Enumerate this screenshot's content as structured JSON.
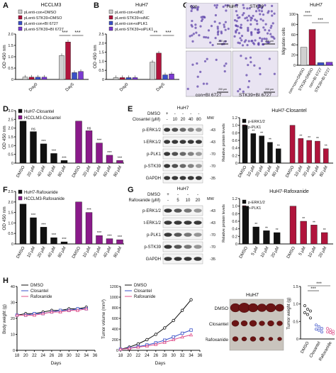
{
  "panels": {
    "A": {
      "letter": "A",
      "title": "HCCLM3",
      "ylabel": "OD 450 nm",
      "legend": [
        "pLenti-con+DMSO",
        "pLenti-STK39+DMSO",
        "pLenti-con+BI 6727",
        "pLenti-STK39+BI 6727"
      ],
      "x": [
        "Day0",
        "Day5"
      ],
      "sig": [
        "***",
        "***"
      ],
      "yticks": [
        "0",
        "0.5",
        "1.0",
        "1.5",
        "2.0"
      ]
    },
    "B": {
      "letter": "B",
      "title": "HuH7",
      "ylabel": "OD 450 nm",
      "legend": [
        "pLenti-con+siNC",
        "pLenti-STK39+siNC",
        "pLenti-con+siPLK1",
        "pLenti-STK39+siPLK1"
      ],
      "x": [
        "Day0",
        "Day5"
      ],
      "sig": [
        "**",
        "***"
      ],
      "yticks": [
        "0",
        "0.5",
        "1.0",
        "1.5",
        "2.0",
        "2.5"
      ]
    },
    "C": {
      "letter": "C",
      "img_labels": [
        "con",
        "HuH7",
        "STK39",
        "con+BI 6727",
        "STK39+BI 6727"
      ],
      "scale": "200 μm",
      "bar_title": "HuH7",
      "ylabel": "Migration cells",
      "x": [
        "con+con+DMSO",
        "STK39+DMSO",
        "con+BI 6727",
        "STK39+BI 6727"
      ],
      "sig": [
        "***",
        "***"
      ],
      "yticks": [
        "0",
        "20",
        "40",
        "60",
        "80",
        "100"
      ]
    },
    "D": {
      "letter": "D",
      "ylabel": "OD 450 nm",
      "legend": [
        "HuH7-Closantel",
        "HCCLM3-Closantel"
      ],
      "x": [
        "DMSO",
        "20 μM",
        "40 μM",
        "60 μM",
        "80 μM",
        "DMSO",
        "20 μM",
        "40 μM",
        "60 μM",
        "80 μM"
      ],
      "ns": "ns",
      "yticks": [
        "0",
        "0.5",
        "1.0",
        "1.5",
        "2.0",
        "2.5",
        "3.0"
      ]
    },
    "E": {
      "letter": "E",
      "cell": "HuH7",
      "dmso": "DMSO",
      "closantel": "Closantel (μM)",
      "plus": "+",
      "minus": "-",
      "doses": [
        "-",
        "10",
        "20",
        "40",
        "80"
      ],
      "mw": "MW",
      "rows": [
        "p-ERK1/2",
        "t-ERK1/2",
        "p-PLK1",
        "p-STK39",
        "GAPDH"
      ],
      "mws": [
        "43",
        "43",
        "70",
        "70",
        "35"
      ],
      "bar_title": "HuH7-Closantel",
      "ylabel": "Relative protein levels",
      "legend": [
        "p-ERK1/2",
        "p-PLK1"
      ],
      "x": [
        "DMSO",
        "10 μM",
        "20 μM",
        "40 μM",
        "80 μM",
        "DMSO",
        "10 μM",
        "20 μM",
        "40 μM",
        "80 μM"
      ],
      "yticks": [
        "0",
        "0.2",
        "0.4",
        "0.6",
        "0.8",
        "1.0",
        "1.2"
      ]
    },
    "F": {
      "letter": "F",
      "ylabel": "OD 450 nm",
      "legend": [
        "HuH7-Rafoxanide",
        "HCCLM3-Rafoxanide"
      ],
      "x": [
        "DMSO",
        "10 μM",
        "20 μM",
        "40 μM",
        "80 μM",
        "DMSO",
        "10 μM",
        "20 μM",
        "40 μM",
        "80 μM"
      ],
      "yticks": [
        "0",
        "0.5",
        "1.0",
        "1.5",
        "2.0",
        "2.5"
      ]
    },
    "G": {
      "letter": "G",
      "cell": "HuH7",
      "dmso": "DMSO",
      "rafoxanide": "Rafoxanide (μM)",
      "plus": "+",
      "minus": "-",
      "doses": [
        "-",
        "5",
        "10",
        "20"
      ],
      "mw": "MW",
      "rows": [
        "p-ERK1/2",
        "t-ERK1/2",
        "p-PLK1",
        "p-STK39",
        "GAPDH"
      ],
      "mws": [
        "43",
        "43",
        "70",
        "70",
        "35"
      ],
      "bar_title": "HuH7-Rafoxanide",
      "ylabel": "Relative protein levels",
      "legend": [
        "p-ERK1/2",
        "p-PLK1"
      ],
      "x": [
        "DMSO",
        "5 μM",
        "10 μM",
        "20 μM",
        "DMSO",
        "5 μM",
        "10 μM",
        "20 μM"
      ],
      "yticks": [
        "0",
        "0.2",
        "0.4",
        "0.6",
        "0.8",
        "1.0",
        "1.2"
      ]
    },
    "H": {
      "letter": "H",
      "bw_ylabel": "Body weight (g)",
      "tv_ylabel": "Tumor volume (mm³)",
      "xlabel": "Days",
      "legend": [
        "DMSO",
        "Closantel",
        "Rafoxanide"
      ],
      "days": [
        "18",
        "20",
        "22",
        "24",
        "26",
        "28",
        "30",
        "32",
        "34",
        "36"
      ],
      "bw_yticks": [
        "0",
        "10",
        "20",
        "30",
        "40"
      ],
      "tv_yticks": [
        "0",
        "200",
        "400",
        "600",
        "800",
        "1000",
        "1200"
      ],
      "photo_title": "HuH7",
      "photo_rows": [
        "DMSO",
        "Closantel",
        "Rafoxanide"
      ],
      "tw_ylabel": "Tumor weight (g)",
      "tw_x": [
        "DMSO",
        "Closantel",
        "Rafoxanide"
      ],
      "tw_yticks": [
        "0",
        "0.5",
        "1.0",
        "1.5"
      ],
      "sig": [
        "***",
        "***"
      ]
    }
  },
  "colors": {
    "grey": "#d0d0d0",
    "purple": "#8a1a8a",
    "crimson": "#b0143c",
    "blue": "#3a50c8",
    "violet": "#7a3ad0",
    "black": "#111111",
    "pink": "#e0508a"
  },
  "chart_data": [
    {
      "type": "bar",
      "panel": "A",
      "categories": [
        "Day0",
        "Day5"
      ],
      "series": [
        {
          "name": "pLenti-con+DMSO",
          "values": [
            0.1,
            1.05
          ]
        },
        {
          "name": "pLenti-STK39+DMSO",
          "values": [
            0.1,
            1.65
          ]
        },
        {
          "name": "pLenti-con+BI 6727",
          "values": [
            0.1,
            0.3
          ]
        },
        {
          "name": "pLenti-STK39+BI 6727",
          "values": [
            0.1,
            0.35
          ]
        }
      ],
      "ylim": [
        0,
        2.0
      ]
    },
    {
      "type": "bar",
      "panel": "B",
      "categories": [
        "Day0",
        "Day5"
      ],
      "series": [
        {
          "name": "pLenti-con+siNC",
          "values": [
            0.1,
            0.95
          ]
        },
        {
          "name": "pLenti-STK39+siNC",
          "values": [
            0.1,
            1.45
          ]
        },
        {
          "name": "pLenti-con+siPLK1",
          "values": [
            0.1,
            0.25
          ]
        },
        {
          "name": "pLenti-STK39+siPLK1",
          "values": [
            0.1,
            0.3
          ]
        }
      ],
      "ylim": [
        0,
        2.5
      ]
    },
    {
      "type": "bar",
      "panel": "C",
      "categories": [
        "con+con+DMSO",
        "STK39+DMSO",
        "con+BI 6727",
        "STK39+BI 6727"
      ],
      "values": [
        35,
        70,
        5,
        6
      ],
      "ylim": [
        0,
        100
      ]
    },
    {
      "type": "bar",
      "panel": "D",
      "categories": [
        "DMSO",
        "20 μM",
        "40 μM",
        "60 μM",
        "80 μM",
        "DMSO",
        "20 μM",
        "40 μM",
        "60 μM",
        "80 μM"
      ],
      "series": [
        {
          "name": "HuH7-Closantel",
          "values": [
            2.4,
            1.8,
            1.1,
            0.55,
            0.15,
            null,
            null,
            null,
            null,
            null
          ]
        },
        {
          "name": "HCCLM3-Closantel",
          "values": [
            null,
            null,
            null,
            null,
            null,
            2.4,
            1.85,
            1.15,
            0.45,
            0.15
          ]
        }
      ],
      "ylim": [
        0,
        3.0
      ]
    },
    {
      "type": "bar",
      "panel": "E",
      "categories": [
        "DMSO",
        "10 μM",
        "20 μM",
        "40 μM",
        "80 μM",
        "DMSO",
        "10 μM",
        "20 μM",
        "40 μM",
        "80 μM"
      ],
      "series": [
        {
          "name": "p-ERK1/2",
          "values": [
            1.0,
            0.78,
            0.72,
            0.55,
            0.38,
            null,
            null,
            null,
            null,
            null
          ]
        },
        {
          "name": "p-PLK1",
          "values": [
            null,
            null,
            null,
            null,
            null,
            1.0,
            0.65,
            0.6,
            0.58,
            0.38
          ]
        }
      ],
      "ylim": [
        0,
        1.2
      ]
    },
    {
      "type": "bar",
      "panel": "F",
      "categories": [
        "DMSO",
        "10 μM",
        "20 μM",
        "40 μM",
        "80 μM",
        "DMSO",
        "10 μM",
        "20 μM",
        "40 μM",
        "80 μM"
      ],
      "series": [
        {
          "name": "HuH7-Rafoxanide",
          "values": [
            1.9,
            1.25,
            0.8,
            0.3,
            0.1,
            null,
            null,
            null,
            null,
            null
          ]
        },
        {
          "name": "HCCLM3-Rafoxanide",
          "values": [
            null,
            null,
            null,
            null,
            null,
            2.0,
            1.5,
            0.4,
            0.25,
            0.2
          ]
        }
      ],
      "ylim": [
        0,
        2.5
      ]
    },
    {
      "type": "bar",
      "panel": "G",
      "categories": [
        "DMSO",
        "5 μM",
        "10 μM",
        "20 μM",
        "DMSO",
        "5 μM",
        "10 μM",
        "20 μM"
      ],
      "series": [
        {
          "name": "p-ERK1/2",
          "values": [
            1.0,
            0.45,
            0.35,
            0.3,
            null,
            null,
            null,
            null
          ]
        },
        {
          "name": "p-PLK1",
          "values": [
            null,
            null,
            null,
            null,
            1.0,
            0.6,
            0.5,
            0.3
          ]
        }
      ],
      "ylim": [
        0,
        1.2
      ]
    },
    {
      "type": "line",
      "panel": "H-body",
      "x": [
        18,
        20,
        22,
        24,
        26,
        28,
        30,
        32,
        34
      ],
      "series": [
        {
          "name": "DMSO",
          "values": [
            22,
            23,
            23,
            24,
            25,
            25,
            26,
            26,
            27
          ]
        },
        {
          "name": "Closantel",
          "values": [
            22,
            22,
            23,
            23,
            24,
            25,
            25,
            26,
            26
          ]
        },
        {
          "name": "Rafoxanide",
          "values": [
            22,
            22,
            22,
            23,
            24,
            24,
            25,
            25,
            26
          ]
        }
      ],
      "ylim": [
        0,
        40
      ],
      "xlim": [
        18,
        36
      ]
    },
    {
      "type": "line",
      "panel": "H-volume",
      "x": [
        18,
        20,
        22,
        24,
        26,
        28,
        30,
        32,
        34
      ],
      "series": [
        {
          "name": "DMSO",
          "values": [
            20,
            60,
            120,
            200,
            300,
            420,
            560,
            750,
            950
          ]
        },
        {
          "name": "Closantel",
          "values": [
            20,
            40,
            70,
            100,
            140,
            190,
            250,
            320,
            380
          ]
        },
        {
          "name": "Rafoxanide",
          "values": [
            20,
            35,
            60,
            80,
            110,
            150,
            200,
            250,
            290
          ]
        }
      ],
      "ylim": [
        0,
        1200
      ],
      "xlim": [
        18,
        36
      ]
    },
    {
      "type": "scatter",
      "panel": "H-weight",
      "categories": [
        "DMSO",
        "Closantel",
        "Rafoxanide"
      ],
      "series": [
        {
          "name": "DMSO",
          "values": [
            0.95,
            0.85,
            0.8,
            0.75,
            0.7,
            0.6
          ]
        },
        {
          "name": "Closantel",
          "values": [
            0.4,
            0.35,
            0.3,
            0.28,
            0.25,
            0.2
          ]
        },
        {
          "name": "Rafoxanide",
          "values": [
            0.3,
            0.26,
            0.22,
            0.2,
            0.18,
            0.15
          ]
        }
      ],
      "ylim": [
        0,
        1.5
      ]
    }
  ]
}
